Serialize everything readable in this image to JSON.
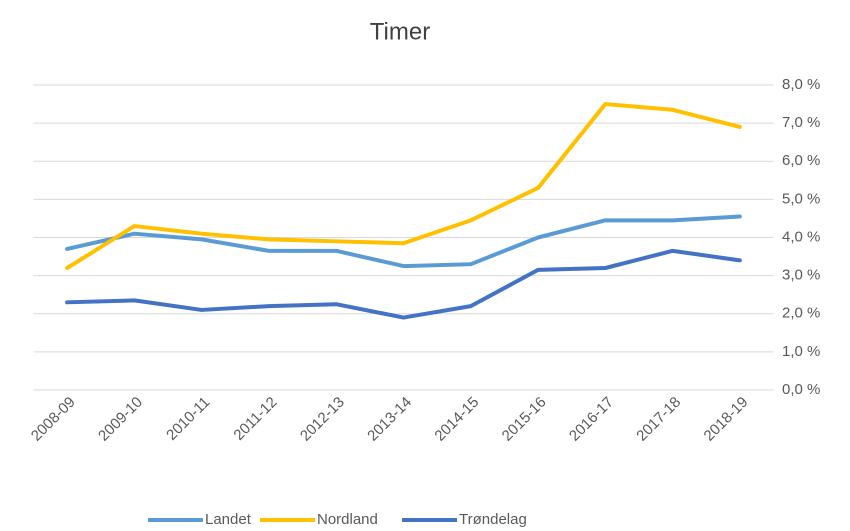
{
  "chart_data": {
    "type": "line",
    "title": "Timer",
    "categories": [
      "2008-09",
      "2009-10",
      "2010-11",
      "2011-12",
      "2012-13",
      "2013-14",
      "2014-15",
      "2015-16",
      "2016-17",
      "2017-18",
      "2018-19"
    ],
    "series": [
      {
        "name": "Landet",
        "color": "#5b9bd5",
        "values": [
          3.7,
          4.1,
          3.95,
          3.65,
          3.65,
          3.25,
          3.3,
          4.0,
          4.45,
          4.45,
          4.55
        ]
      },
      {
        "name": "Nordland",
        "color": "#ffc000",
        "values": [
          3.2,
          4.3,
          4.1,
          3.95,
          3.9,
          3.85,
          4.45,
          5.3,
          7.5,
          7.35,
          6.9
        ]
      },
      {
        "name": "Trøndelag",
        "color": "#4472c4",
        "values": [
          2.3,
          2.35,
          2.1,
          2.2,
          2.25,
          1.9,
          2.2,
          3.15,
          3.2,
          3.65,
          3.4
        ]
      }
    ],
    "ylim": [
      0,
      8
    ],
    "yticks": [
      {
        "value": 0,
        "label": "0,0 %"
      },
      {
        "value": 1,
        "label": "1,0 %"
      },
      {
        "value": 2,
        "label": "2,0 %"
      },
      {
        "value": 3,
        "label": "3,0 %"
      },
      {
        "value": 4,
        "label": "4,0 %"
      },
      {
        "value": 5,
        "label": "5,0 %"
      },
      {
        "value": 6,
        "label": "6,0 %"
      },
      {
        "value": 7,
        "label": "7,0 %"
      },
      {
        "value": 8,
        "label": "8,0 %"
      }
    ],
    "grid": true,
    "legend": "bottom"
  }
}
